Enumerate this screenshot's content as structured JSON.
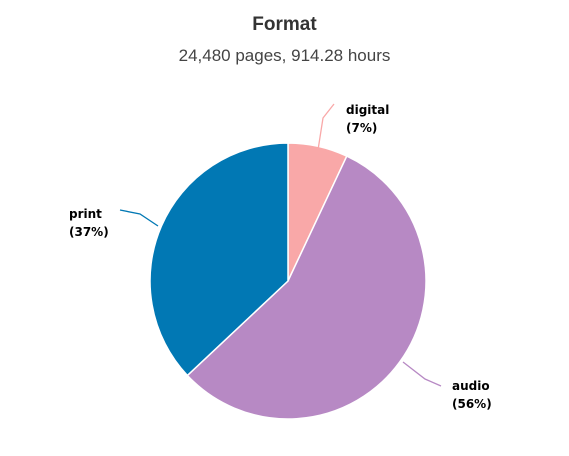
{
  "chart_data": {
    "type": "pie",
    "title": "Format",
    "subtitle": "24,480 pages, 914.28 hours",
    "slices": [
      {
        "name": "digital",
        "percent_label": "(7%)",
        "value": 7,
        "color": "#f9a8a8"
      },
      {
        "name": "audio",
        "percent_label": "(56%)",
        "value": 56,
        "color": "#b789c4"
      },
      {
        "name": "print",
        "percent_label": "(37%)",
        "value": 37,
        "color": "#0178b4"
      }
    ],
    "start_angle_deg": 0,
    "legend": "none"
  }
}
